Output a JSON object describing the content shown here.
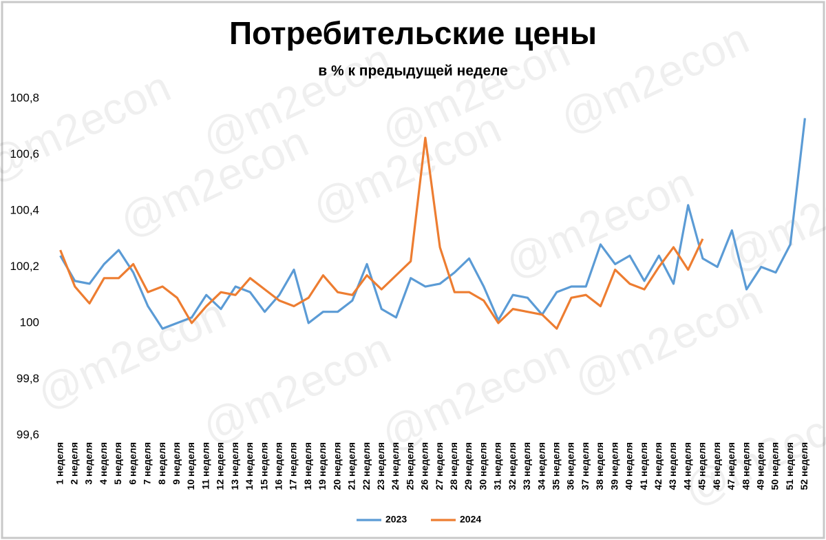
{
  "chart_data": {
    "type": "line",
    "title": "Потребительские цены",
    "subtitle": "в % к предыдущей неделе",
    "watermark": "@m2econ",
    "categories": [
      "1 неделя",
      "2 неделя",
      "3 неделя",
      "4 неделя",
      "5 неделя",
      "6 неделя",
      "7 неделя",
      "8 неделя",
      "9 неделя",
      "10 неделя",
      "11 неделя",
      "12 неделя",
      "13 неделя",
      "14 неделя",
      "15 неделя",
      "16 неделя",
      "17 неделя",
      "18 неделя",
      "19 неделя",
      "20 неделя",
      "21 неделя",
      "22 неделя",
      "23 неделя",
      "24 неделя",
      "25 неделя",
      "26 неделя",
      "27 неделя",
      "28 неделя",
      "29 неделя",
      "30 неделя",
      "31 неделя",
      "32 неделя",
      "33 неделя",
      "34 неделя",
      "35 неделя",
      "36 неделя",
      "37 неделя",
      "38 неделя",
      "39 неделя",
      "40 неделя",
      "41 неделя",
      "42 неделя",
      "43 неделя",
      "44 неделя",
      "45 неделя",
      "46 неделя",
      "47 неделя",
      "48 неделя",
      "49 неделя",
      "50 неделя",
      "51 неделя",
      "52 неделя"
    ],
    "series": [
      {
        "name": "2023",
        "color": "#5b9bd5",
        "values": [
          100.24,
          100.15,
          100.14,
          100.21,
          100.26,
          100.18,
          100.06,
          99.98,
          100.0,
          100.02,
          100.1,
          100.05,
          100.13,
          100.11,
          100.04,
          100.1,
          100.19,
          100.0,
          100.04,
          100.04,
          100.08,
          100.21,
          100.05,
          100.02,
          100.16,
          100.13,
          100.14,
          100.18,
          100.23,
          100.13,
          100.01,
          100.1,
          100.09,
          100.03,
          100.11,
          100.13,
          100.13,
          100.28,
          100.21,
          100.24,
          100.15,
          100.24,
          100.14,
          100.42,
          100.23,
          100.2,
          100.33,
          100.12,
          100.2,
          100.18,
          100.28,
          100.73
        ]
      },
      {
        "name": "2024",
        "color": "#ed7d31",
        "values": [
          100.26,
          100.13,
          100.07,
          100.16,
          100.16,
          100.21,
          100.11,
          100.13,
          100.09,
          100.0,
          100.06,
          100.11,
          100.1,
          100.16,
          100.12,
          100.08,
          100.06,
          100.09,
          100.17,
          100.11,
          100.1,
          100.17,
          100.12,
          100.17,
          100.22,
          100.66,
          100.27,
          100.11,
          100.11,
          100.08,
          100.0,
          100.05,
          100.04,
          100.03,
          99.98,
          100.09,
          100.1,
          100.06,
          100.19,
          100.14,
          100.12,
          100.2,
          100.27,
          100.19,
          100.3,
          null,
          null,
          null,
          null,
          null,
          null,
          null
        ]
      }
    ],
    "ylim": [
      99.6,
      100.8
    ],
    "yticks": [
      {
        "value": 99.6,
        "label": "99,6"
      },
      {
        "value": 99.8,
        "label": "99,8"
      },
      100,
      {
        "value": 100.2,
        "label": "100,2"
      },
      {
        "value": 100.4,
        "label": "100,4"
      },
      {
        "value": 100.6,
        "label": "100,6"
      },
      {
        "value": 100.8,
        "label": "100,8"
      }
    ],
    "grid": false,
    "legend": "bottom"
  }
}
